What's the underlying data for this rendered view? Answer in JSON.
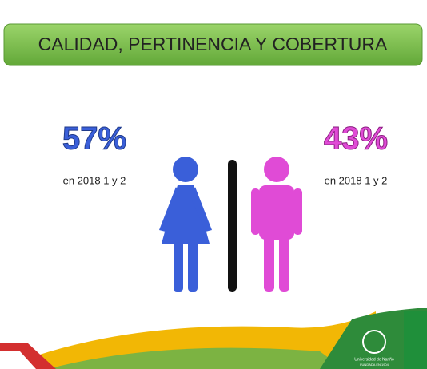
{
  "header": {
    "title": "CALIDAD, PERTINENCIA Y COBERTURA"
  },
  "stats": [
    {
      "value": "57%",
      "label": "en 2018 1 y 2",
      "color": "#3a5fd9"
    },
    {
      "value": "43%",
      "label": "en 2018 1 y 2",
      "color": "#e04bd6"
    }
  ],
  "footer": {
    "logo_text": "Universidad de Nariño",
    "logo_subtext": "FUNDADA EN 1904"
  }
}
